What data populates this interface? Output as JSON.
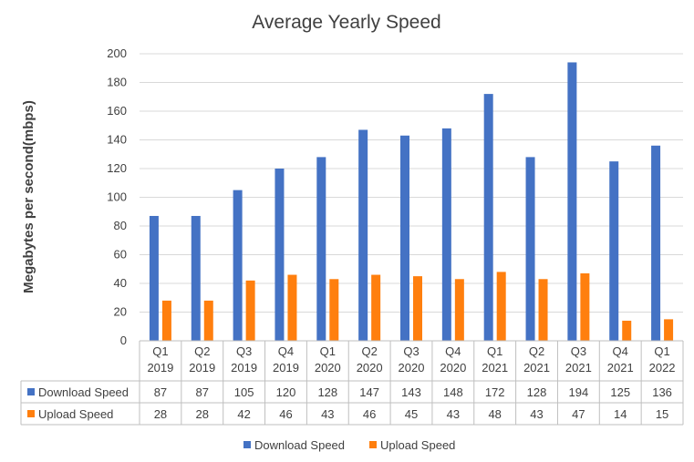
{
  "chart_data": {
    "type": "bar",
    "title": "Average Yearly Speed",
    "xlabel": "",
    "ylabel": "Megabytes per second(mbps)",
    "ylim": [
      0,
      200
    ],
    "yticks": [
      0,
      20,
      40,
      60,
      80,
      100,
      120,
      140,
      160,
      180,
      200
    ],
    "grid": "horizontal",
    "legend_position": "bottom",
    "data_table": true,
    "categories": [
      [
        "Q1",
        "2019"
      ],
      [
        "Q2",
        "2019"
      ],
      [
        "Q3",
        "2019"
      ],
      [
        "Q4",
        "2019"
      ],
      [
        "Q1",
        "2020"
      ],
      [
        "Q2",
        "2020"
      ],
      [
        "Q3",
        "2020"
      ],
      [
        "Q4",
        "2020"
      ],
      [
        "Q1",
        "2021"
      ],
      [
        "Q2",
        "2021"
      ],
      [
        "Q3",
        "2021"
      ],
      [
        "Q4",
        "2021"
      ],
      [
        "Q1",
        "2022"
      ]
    ],
    "series": [
      {
        "name": "Download Speed",
        "color": "#4472c4",
        "values": [
          87,
          87,
          105,
          120,
          128,
          147,
          143,
          148,
          172,
          128,
          194,
          125,
          136
        ]
      },
      {
        "name": "Upload Speed",
        "color": "#ff7f0e",
        "values": [
          28,
          28,
          42,
          46,
          43,
          46,
          45,
          43,
          48,
          43,
          47,
          14,
          15
        ]
      }
    ]
  }
}
